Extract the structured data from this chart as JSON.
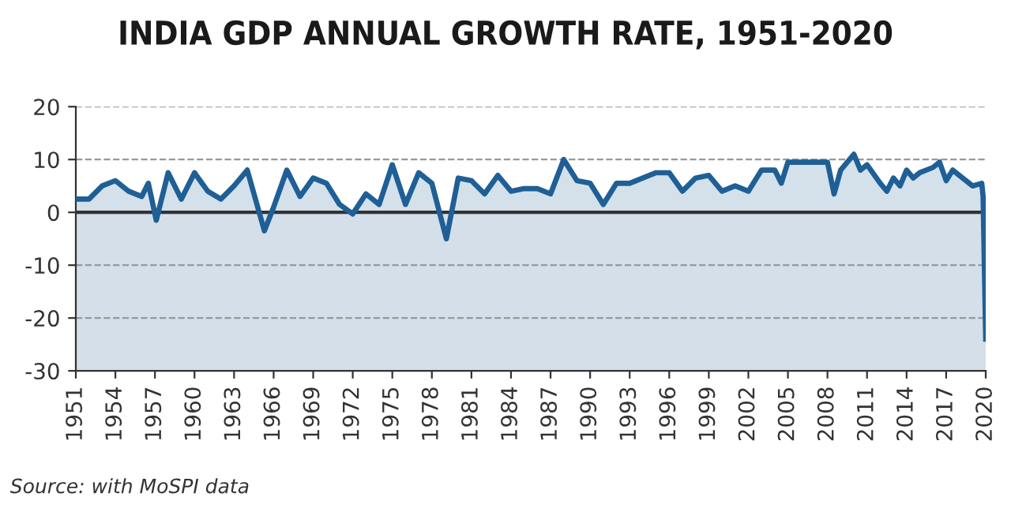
{
  "chart_data": {
    "type": "area",
    "title": "INDIA GDP ANNUAL GROWTH RATE, 1951-2020",
    "annotations": [
      "Source: with MoSPI data"
    ],
    "x": [
      1951,
      1952,
      1953,
      1954,
      1955,
      1956,
      1956.5,
      1957.1,
      1958,
      1959,
      1960,
      1961,
      1962,
      1963,
      1964,
      1965.3,
      1966,
      1967,
      1968,
      1969,
      1970,
      1971,
      1972,
      1973,
      1974,
      1975,
      1976,
      1977,
      1978,
      1979.1,
      1980,
      1981,
      1982,
      1983,
      1984,
      1985,
      1986,
      1987,
      1988,
      1989,
      1990,
      1991,
      1992,
      1993,
      1994,
      1995,
      1996,
      1997,
      1998,
      1999,
      2000,
      2001,
      2002,
      2003,
      2004,
      2004.5,
      2005,
      2006,
      2007,
      2008,
      2008.5,
      2009,
      2010,
      2010.5,
      2011,
      2012,
      2012.5,
      2013,
      2013.5,
      2014,
      2014.5,
      2015,
      2016,
      2016.5,
      2017,
      2017.5,
      2018,
      2019,
      2019.7,
      2019.8,
      2020
    ],
    "series": [
      {
        "color": "#1f5f96",
        "values": [
          2.5,
          2.5,
          5,
          6,
          4,
          3,
          5.5,
          -1.5,
          7.5,
          2.5,
          7.5,
          4,
          2.5,
          5,
          8,
          -3.5,
          1,
          8,
          3,
          6.5,
          5.5,
          1.5,
          -0.3,
          3.5,
          1.5,
          9,
          1.5,
          7.5,
          5.5,
          -5,
          6.5,
          6,
          3.5,
          7,
          4,
          4.5,
          4.5,
          3.5,
          10,
          6,
          5.5,
          1.5,
          5.5,
          5.5,
          6.5,
          7.5,
          7.5,
          4,
          6.5,
          7,
          4,
          5,
          4,
          8,
          8,
          5.5,
          9.5,
          9.5,
          9.5,
          9.5,
          3.5,
          8,
          11,
          8,
          9,
          5.5,
          4,
          6.5,
          5,
          8,
          6.5,
          7.5,
          8.5,
          9.5,
          6,
          8,
          7,
          5,
          5.5,
          3,
          -24
        ]
      }
    ],
    "xlim": [
      1951,
      2020
    ],
    "xticks": [
      1951,
      1954,
      1957,
      1960,
      1963,
      1966,
      1969,
      1972,
      1975,
      1978,
      1981,
      1984,
      1987,
      1990,
      1993,
      1996,
      1999,
      2002,
      2005,
      2008,
      2011,
      2014,
      2017,
      2020
    ],
    "ylim": [
      -30,
      20
    ],
    "yticks": [
      -30,
      -20,
      -10,
      0,
      10,
      20
    ],
    "bands": [
      {
        "axis": "y",
        "from": -30,
        "to": 0,
        "color": "#d5dfea"
      }
    ],
    "ref_lines": [
      {
        "axis": "y",
        "value": 0,
        "color": "#333333",
        "line_style": "solid"
      }
    ],
    "grid": "y"
  }
}
